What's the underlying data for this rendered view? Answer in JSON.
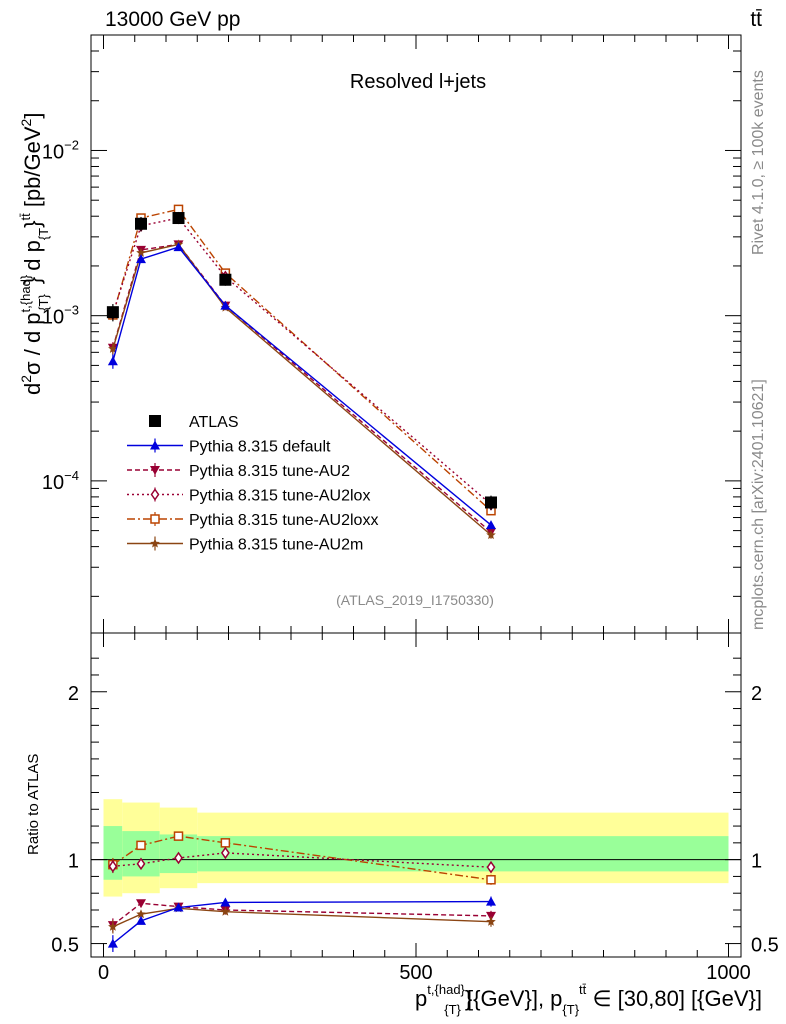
{
  "header": {
    "energy_label": "13000 GeV pp",
    "process_label": "tt̄"
  },
  "side_labels": {
    "rivet": "Rivet 4.1.0, ≥ 100k events",
    "mcplots": "mcplots.cern.ch [arXiv:2401.10621]"
  },
  "chart_data": [
    {
      "type": "line",
      "panel": "main",
      "title": "Resolved l+jets",
      "analysis_id": "(ATLAS_2019_I1750330)",
      "yscale": "log",
      "ylim": [
        1.2e-05,
        0.05
      ],
      "xlim": [
        -20,
        1020
      ],
      "ylabel": {
        "prefix": "d",
        "sup2": "2",
        "sigma": "σ",
        "mid": " / d p",
        "sup_t": "t,{had}",
        "sub_t": "{T}",
        "mid2": "} d p",
        "sub_t2": "{T",
        "sup_end": "}",
        "sup_tt": "tt̄",
        "unit": " [pb/GeV",
        "unit_sup": "2",
        "unit_end": "]"
      },
      "y_ticks": [
        {
          "value": 0.0001,
          "base": "10",
          "exp": "−4"
        },
        {
          "value": 0.001,
          "base": "10",
          "exp": "−3"
        },
        {
          "value": 0.01,
          "base": "10",
          "exp": "−2"
        }
      ],
      "x_bins": [
        [
          0,
          30
        ],
        [
          30,
          90
        ],
        [
          90,
          150
        ],
        [
          150,
          300
        ],
        [
          300,
          1000
        ]
      ],
      "x": [
        15,
        60,
        120,
        195,
        620
      ],
      "series": [
        {
          "name": "ATLAS",
          "key": "data",
          "values": [
            0.00105,
            0.0036,
            0.0039,
            0.00165,
            7.4e-05
          ],
          "yerr_rel": [
            0.12,
            0.1,
            0.08,
            0.08,
            0.1
          ],
          "color": "#000000",
          "marker": "square-filled",
          "dash": ""
        },
        {
          "name": "Pythia 8.315 default",
          "key": "default",
          "values": [
            0.00053,
            0.0022,
            0.0026,
            0.00115,
            5.4e-05
          ],
          "yerr_rel": [
            0.1,
            0.03,
            0.02,
            0.02,
            0.05
          ],
          "color": "#0000dd",
          "marker": "triangle-up",
          "dash": ""
        },
        {
          "name": "Pythia 8.315 tune-AU2",
          "key": "au2",
          "values": [
            0.00064,
            0.0025,
            0.0027,
            0.00115,
            4.9e-05
          ],
          "yerr_rel": [
            0.08,
            0.03,
            0.02,
            0.02,
            0.05
          ],
          "color": "#990033",
          "marker": "triangle-down",
          "dash": "5,3"
        },
        {
          "name": "Pythia 8.315 tune-AU2lox",
          "key": "au2lox",
          "values": [
            0.00103,
            0.0035,
            0.0039,
            0.00172,
            7.2e-05
          ],
          "yerr_rel": [
            0.06,
            0.03,
            0.02,
            0.02,
            0.05
          ],
          "color": "#990033",
          "marker": "diamond-open",
          "dash": "2,3"
        },
        {
          "name": "Pythia 8.315 tune-AU2loxx",
          "key": "au2loxx",
          "values": [
            0.00101,
            0.0039,
            0.0044,
            0.00181,
            6.6e-05
          ],
          "yerr_rel": [
            0.06,
            0.03,
            0.02,
            0.02,
            0.05
          ],
          "color": "#bb4400",
          "marker": "square-open",
          "dash": "8,3,2,3"
        },
        {
          "name": "Pythia 8.315 tune-AU2m",
          "key": "au2m",
          "values": [
            0.00063,
            0.0024,
            0.0027,
            0.00112,
            4.7e-05
          ],
          "yerr_rel": [
            0.08,
            0.03,
            0.02,
            0.02,
            0.05
          ],
          "color": "#8b4513",
          "marker": "star",
          "dash": ""
        }
      ]
    },
    {
      "type": "line",
      "panel": "ratio",
      "ylabel": "Ratio to ATLAS",
      "ylim": [
        0.42,
        2.35
      ],
      "y_ticks": [
        {
          "value": 0.5,
          "label": "0.5"
        },
        {
          "value": 1,
          "label": "1"
        },
        {
          "value": 2,
          "label": "2"
        }
      ],
      "x_ticks": [
        {
          "value": 0,
          "label": "0"
        },
        {
          "value": 500,
          "label": "500"
        },
        {
          "value": 1000,
          "label": "1000"
        }
      ],
      "xlabel": {
        "p": "p",
        "sup_t": "t,{had}",
        "brace": "}",
        "sub_t": "{T}",
        "mid": " [{GeV}], p",
        "sub_t2": "{T}",
        "sup_tt": "tt̄",
        "end": " ∈ [30,80] [{GeV}]"
      },
      "band_edges": [
        0,
        30,
        90,
        150,
        300,
        1000
      ],
      "band_yellow": [
        [
          0.78,
          1.36
        ],
        [
          0.8,
          1.34
        ],
        [
          0.83,
          1.31
        ],
        [
          0.86,
          1.28
        ],
        [
          0.86,
          1.28
        ]
      ],
      "band_green": [
        [
          0.88,
          1.2
        ],
        [
          0.9,
          1.17
        ],
        [
          0.92,
          1.15
        ],
        [
          0.93,
          1.14
        ],
        [
          0.93,
          1.14
        ]
      ],
      "series": [
        {
          "key": "default",
          "values": [
            0.5,
            0.635,
            0.715,
            0.745,
            0.75
          ],
          "yerr": [
            0.05,
            0.015,
            0.015,
            0.02,
            0.03
          ]
        },
        {
          "key": "au2",
          "values": [
            0.61,
            0.74,
            0.72,
            0.7,
            0.665
          ],
          "yerr": [
            0.04,
            0.015,
            0.015,
            0.015,
            0.03
          ]
        },
        {
          "key": "au2lox",
          "values": [
            0.96,
            0.975,
            1.01,
            1.04,
            0.955
          ],
          "yerr": [
            0.04,
            0.015,
            0.015,
            0.02,
            0.03
          ]
        },
        {
          "key": "au2loxx",
          "values": [
            0.97,
            1.085,
            1.14,
            1.1,
            0.88
          ],
          "yerr": [
            0.04,
            0.015,
            0.015,
            0.02,
            0.03
          ]
        },
        {
          "key": "au2m",
          "values": [
            0.6,
            0.675,
            0.71,
            0.69,
            0.63
          ],
          "yerr": [
            0.04,
            0.015,
            0.015,
            0.015,
            0.03
          ]
        }
      ]
    }
  ]
}
